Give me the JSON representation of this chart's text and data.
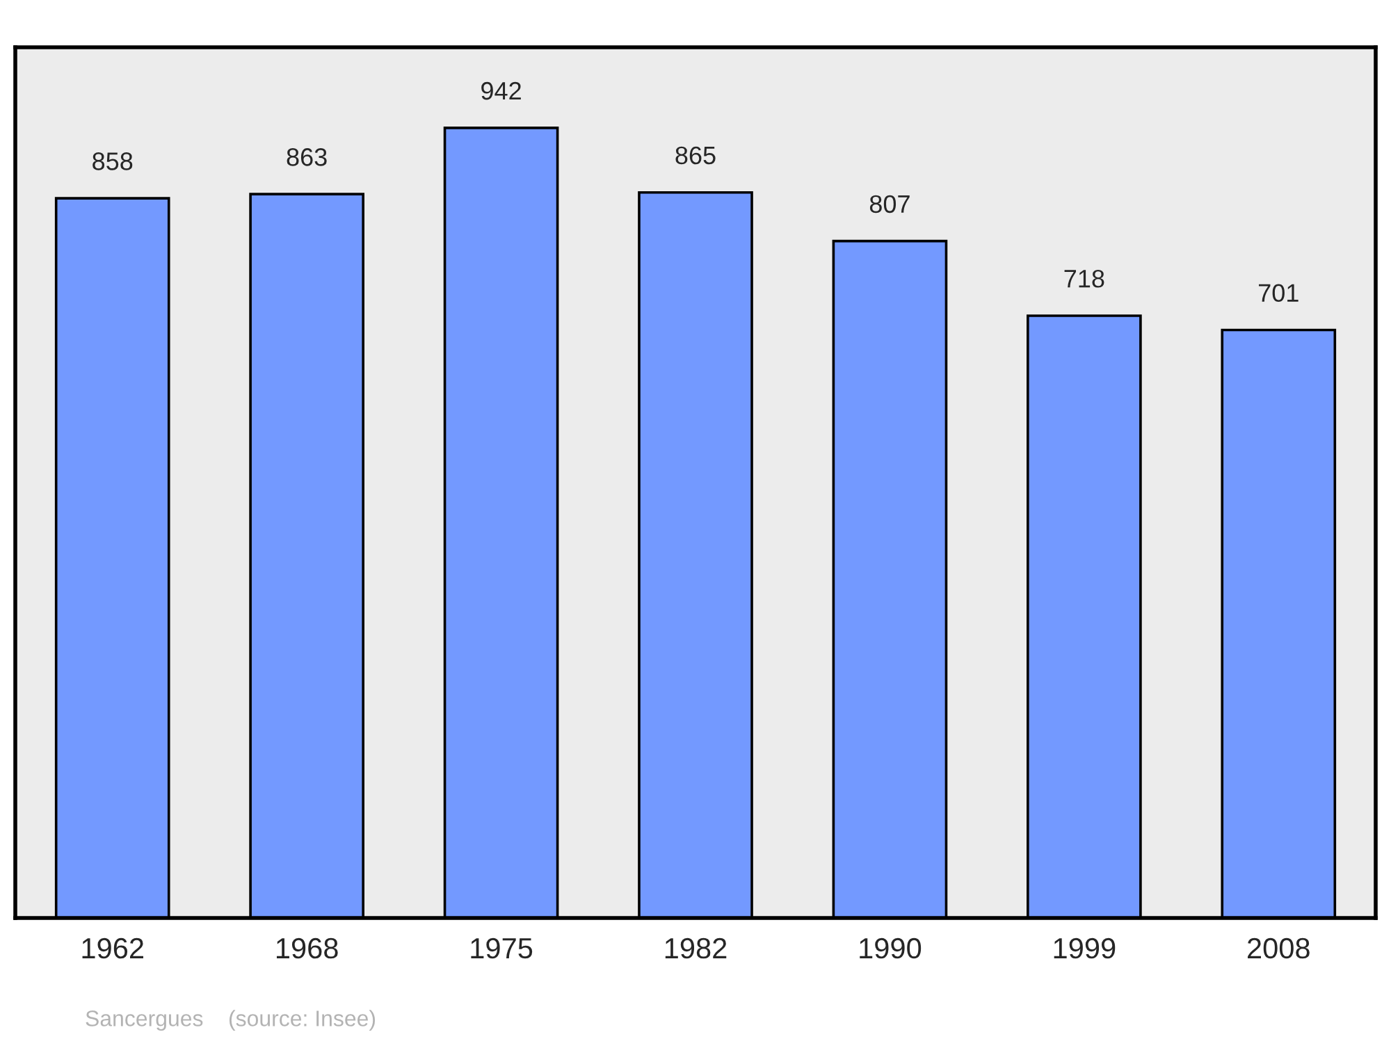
{
  "chart_data": {
    "type": "bar",
    "categories": [
      "1962",
      "1968",
      "1975",
      "1982",
      "1990",
      "1999",
      "2008"
    ],
    "values": [
      858,
      863,
      942,
      865,
      807,
      718,
      701
    ],
    "color": "#7399ff",
    "data_labels": true,
    "grid": false,
    "legend": false,
    "tick_labels": "x",
    "annotations": [
      "Sancergues    (source: Insee)"
    ]
  }
}
